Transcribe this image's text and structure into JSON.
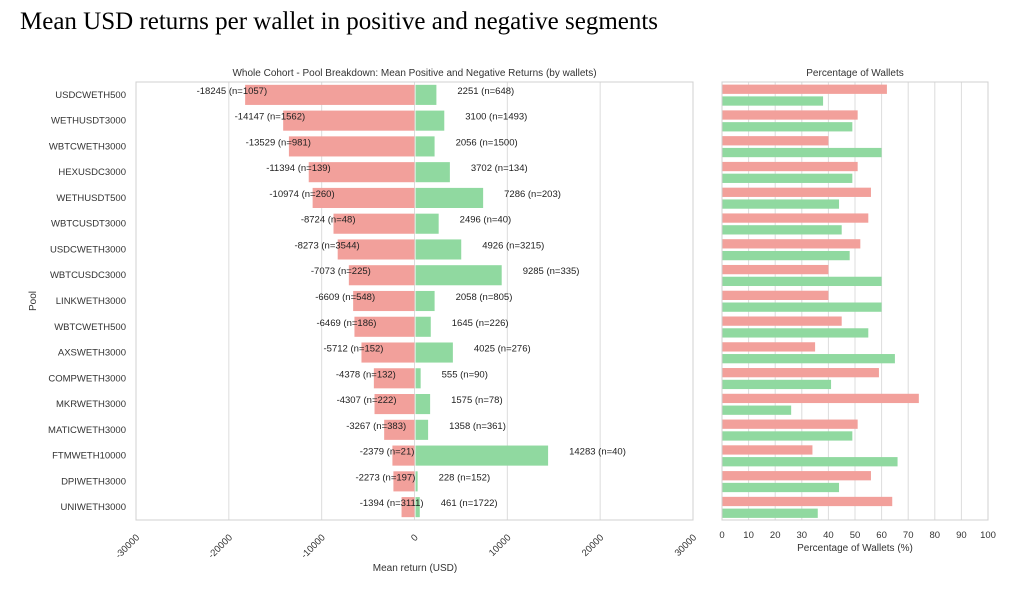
{
  "page_title": "Mean USD returns per wallet in positive and negative segments",
  "colors": {
    "negative": "#f2a09b",
    "positive": "#90d9a0",
    "grid": "#dcdcdc",
    "frame": "#d0d0d0"
  },
  "chart_data": [
    {
      "type": "bar",
      "orientation": "horizontal",
      "title": "Whole Cohort - Pool Breakdown: Mean Positive and Negative Returns (by wallets)",
      "xlabel": "Mean return (USD)",
      "ylabel": "Pool",
      "xlim": [
        -30000,
        30000
      ],
      "xticks": [
        "-30000",
        "-20000",
        "-10000",
        "0",
        "10000",
        "20000",
        "30000"
      ],
      "grid": true,
      "categories": [
        "USDCWETH500",
        "WETHUSDT3000",
        "WBTCWETH3000",
        "HEXUSDC3000",
        "WETHUSDT500",
        "WBTCUSDT3000",
        "USDCWETH3000",
        "WBTCUSDC3000",
        "LINKWETH3000",
        "WBTCWETH500",
        "AXSWETH3000",
        "COMPWETH3000",
        "MKRWETH3000",
        "MATICWETH3000",
        "FTMWETH10000",
        "DPIWETH3000",
        "UNIWETH3000"
      ],
      "series": [
        {
          "name": "Negative",
          "values": [
            -18245,
            -14147,
            -13529,
            -11394,
            -10974,
            -8724,
            -8273,
            -7073,
            -6609,
            -6469,
            -5712,
            -4378,
            -4307,
            -3267,
            -2379,
            -2273,
            -1394
          ],
          "n": [
            1057,
            1562,
            981,
            139,
            260,
            48,
            3544,
            225,
            548,
            186,
            152,
            132,
            222,
            383,
            21,
            197,
            3111
          ],
          "labels": [
            "-18245 (n=1057)",
            "-14147 (n=1562)",
            "-13529 (n=981)",
            "-11394 (n=139)",
            "-10974 (n=260)",
            "-8724 (n=48)",
            "-8273 (n=3544)",
            "-7073 (n=225)",
            "-6609 (n=548)",
            "-6469 (n=186)",
            "-5712 (n=152)",
            "-4378 (n=132)",
            "-4307 (n=222)",
            "-3267 (n=383)",
            "-2379 (n=21)",
            "-2273 (n=197)",
            "-1394 (n=3111)"
          ]
        },
        {
          "name": "Positive",
          "values": [
            2251,
            3100,
            2056,
            3702,
            7286,
            2496,
            4926,
            9285,
            2058,
            1645,
            4025,
            555,
            1575,
            1358,
            14283,
            228,
            461
          ],
          "n": [
            648,
            1493,
            1500,
            134,
            203,
            40,
            3215,
            335,
            805,
            226,
            276,
            90,
            78,
            361,
            40,
            152,
            1722
          ],
          "labels": [
            "2251 (n=648)",
            "3100 (n=1493)",
            "2056 (n=1500)",
            "3702 (n=134)",
            "7286 (n=203)",
            "2496 (n=40)",
            "4926 (n=3215)",
            "9285 (n=335)",
            "2058 (n=805)",
            "1645 (n=226)",
            "4025 (n=276)",
            "555 (n=90)",
            "1575 (n=78)",
            "1358 (n=361)",
            "14283 (n=40)",
            "228 (n=152)",
            "461 (n=1722)"
          ]
        }
      ]
    },
    {
      "type": "bar",
      "orientation": "horizontal",
      "title": "Percentage of Wallets",
      "xlabel": "Percentage of Wallets (%)",
      "ylabel": "",
      "xlim": [
        0,
        100
      ],
      "xticks": [
        "0",
        "10",
        "20",
        "30",
        "40",
        "50",
        "60",
        "70",
        "80",
        "90",
        "100"
      ],
      "grid": true,
      "categories": [
        "USDCWETH500",
        "WETHUSDT3000",
        "WBTCWETH3000",
        "HEXUSDC3000",
        "WETHUSDT500",
        "WBTCUSDT3000",
        "USDCWETH3000",
        "WBTCUSDC3000",
        "LINKWETH3000",
        "WBTCWETH500",
        "AXSWETH3000",
        "COMPWETH3000",
        "MKRWETH3000",
        "MATICWETH3000",
        "FTMWETH10000",
        "DPIWETH3000",
        "UNIWETH3000"
      ],
      "series": [
        {
          "name": "Negative",
          "values": [
            62,
            51,
            40,
            51,
            56,
            55,
            52,
            40,
            40,
            45,
            35,
            59,
            74,
            51,
            34,
            56,
            64
          ]
        },
        {
          "name": "Positive",
          "values": [
            38,
            49,
            60,
            49,
            44,
            45,
            48,
            60,
            60,
            55,
            65,
            41,
            26,
            49,
            66,
            44,
            36
          ]
        }
      ]
    }
  ]
}
